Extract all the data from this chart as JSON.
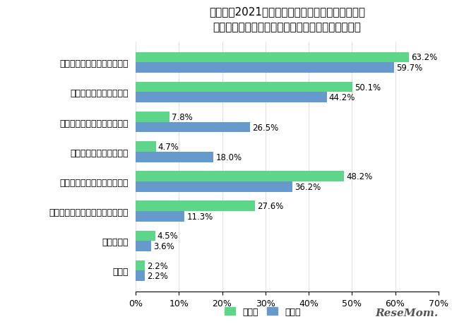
{
  "title": "子どもが2021年の目標・抱負を決めるとしたら、\nどのような内容の目標・抱負を立ててほしいですか",
  "categories": [
    "学習習慣に関する目標・抱負",
    "受験に関する目標・抱負",
    "資格試験に関する目標・抱負",
    "部活に関する目標・抱負",
    "生活習慣に関する目標・抱負",
    "習い事や趣味に関する目標・抱負",
    "わからない",
    "その他"
  ],
  "shogakusei": [
    63.2,
    50.1,
    7.8,
    4.7,
    48.2,
    27.6,
    4.5,
    2.2
  ],
  "chukousei": [
    59.7,
    44.2,
    26.5,
    18.0,
    36.2,
    11.3,
    3.6,
    2.2
  ],
  "color_sho": "#5ed68a",
  "color_chu": "#6699cc",
  "legend_sho": "小学生",
  "legend_chu": "中高生",
  "xlim": [
    0,
    70
  ],
  "xticks": [
    0,
    10,
    20,
    30,
    40,
    50,
    60,
    70
  ],
  "xtick_labels": [
    "0%",
    "10%",
    "20%",
    "30%",
    "40%",
    "50%",
    "60%",
    "70%"
  ],
  "background_color": "#ffffff",
  "bar_height": 0.35,
  "title_fontsize": 11,
  "label_fontsize": 9,
  "tick_fontsize": 9,
  "value_fontsize": 8.5
}
